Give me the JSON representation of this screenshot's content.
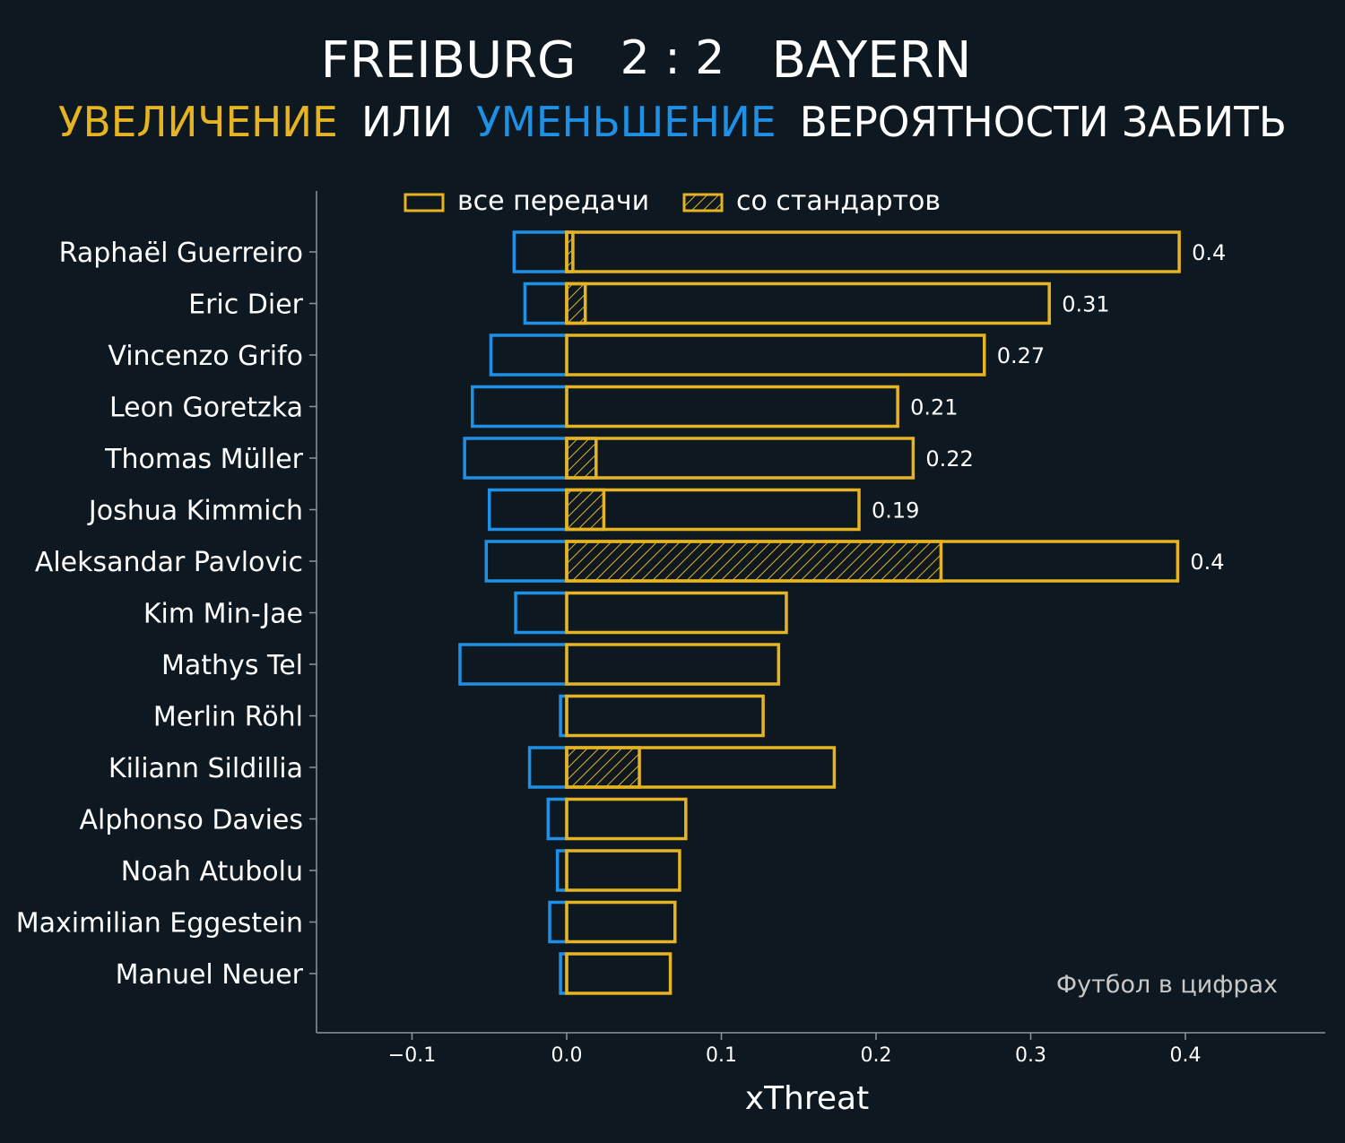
{
  "header": {
    "home_team": "FREIBURG",
    "score": "2 : 2",
    "away_team": "BAYERN",
    "subtitle_increase": "УВЕЛИЧЕНИЕ",
    "subtitle_or": "ИЛИ",
    "subtitle_decrease": "УМЕНЬШЕНИЕ",
    "subtitle_rest": "ВЕРОЯТНОСТИ ЗАБИТЬ"
  },
  "watermark": "Футбол в цифрах",
  "colors": {
    "background": "#0e1820",
    "increase": "#e6b422",
    "decrease": "#1e90e6",
    "text": "#ffffff",
    "axis": "#8c959c",
    "watermark": "#c8c8c8"
  },
  "chart_data": {
    "type": "bar",
    "orientation": "horizontal",
    "xlabel": "xThreat",
    "xlim": [
      -0.16,
      0.49
    ],
    "xticks": [
      -0.1,
      0.0,
      0.1,
      0.2,
      0.3,
      0.4
    ],
    "xtick_labels": [
      "−0.1",
      "0.0",
      "0.1",
      "0.2",
      "0.3",
      "0.4"
    ],
    "legend": {
      "placement": "top",
      "all_passes": "все передачи",
      "set_pieces": "со стандартов"
    },
    "categories": [
      "Raphaël Guerreiro",
      "Eric Dier",
      "Vincenzo Grifo",
      "Leon Goretzka",
      "Thomas Müller",
      "Joshua Kimmich",
      "Aleksandar Pavlovic",
      "Kim Min-Jae",
      "Mathys Tel",
      "Merlin Röhl",
      "Kiliann Sildillia",
      "Alphonso Davies",
      "Noah Atubolu",
      "Maximilian Eggestein",
      "Manuel Neuer"
    ],
    "series": [
      {
        "key": "positive",
        "name": "все передачи",
        "values": [
          0.396,
          0.312,
          0.27,
          0.214,
          0.224,
          0.189,
          0.395,
          0.142,
          0.137,
          0.127,
          0.173,
          0.077,
          0.073,
          0.07,
          0.067
        ]
      },
      {
        "key": "set_pieces",
        "name": "со стандартов",
        "values": [
          0.004,
          0.012,
          0,
          0,
          0.019,
          0.024,
          0.242,
          0,
          0,
          0,
          0.047,
          0,
          0,
          0,
          0
        ]
      },
      {
        "key": "negative",
        "values": [
          -0.034,
          -0.027,
          -0.049,
          -0.061,
          -0.066,
          -0.05,
          -0.052,
          -0.033,
          -0.069,
          -0.004,
          -0.024,
          -0.012,
          -0.006,
          -0.011,
          -0.004
        ]
      }
    ],
    "value_labels": [
      "0.4",
      "0.31",
      "0.27",
      "0.21",
      "0.22",
      "0.19",
      "0.4",
      "",
      "",
      "",
      "",
      "",
      "",
      "",
      ""
    ]
  }
}
